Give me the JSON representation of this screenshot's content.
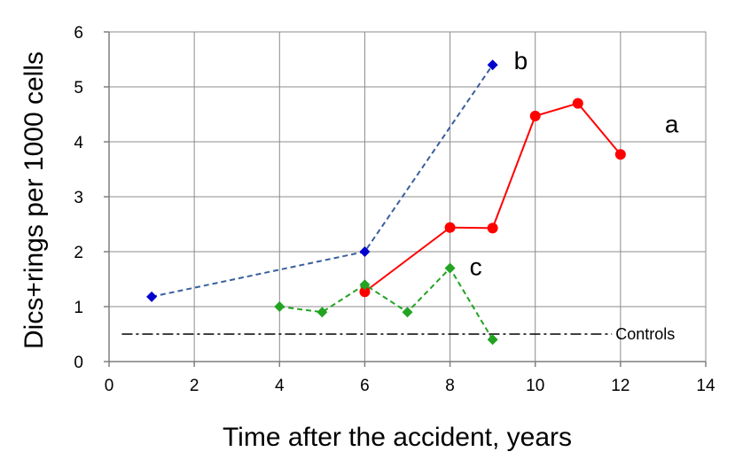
{
  "chart_data": {
    "type": "line",
    "title": "",
    "xlabel": "Time after the accident, years",
    "ylabel": "Dics+rings per 1000 cells",
    "xlim": [
      0,
      14
    ],
    "ylim": [
      0,
      6
    ],
    "xticks": [
      0,
      2,
      4,
      6,
      8,
      10,
      12,
      14
    ],
    "yticks": [
      0,
      1,
      2,
      3,
      4,
      5,
      6
    ],
    "grid": true,
    "legend": "none",
    "series": [
      {
        "label": "b",
        "color": "#0000cc",
        "line_color": "#3a5f9e",
        "line_style": "dashed",
        "marker": "diamond",
        "points": [
          [
            1,
            1.18
          ],
          [
            6,
            2.0
          ],
          [
            9,
            5.4
          ]
        ]
      },
      {
        "label": "a",
        "color": "#ff0000",
        "line_color": "#ff0000",
        "line_style": "solid",
        "marker": "circle",
        "points": [
          [
            6,
            1.27
          ],
          [
            8,
            2.44
          ],
          [
            9,
            2.43
          ],
          [
            10,
            4.47
          ],
          [
            11,
            4.7
          ],
          [
            12,
            3.77
          ]
        ]
      },
      {
        "label": "c",
        "color": "#22a322",
        "line_color": "#22a322",
        "line_style": "dashed",
        "marker": "diamond",
        "points": [
          [
            4,
            1.0
          ],
          [
            5,
            0.9
          ],
          [
            6,
            1.4
          ],
          [
            7,
            0.9
          ],
          [
            8,
            1.7
          ],
          [
            9,
            0.4
          ]
        ]
      }
    ],
    "reference_line": {
      "label": "Controls",
      "y": 0.5,
      "x_range": [
        0.3,
        11.8
      ],
      "color": "#000000",
      "line_style": "dash-dot"
    }
  }
}
